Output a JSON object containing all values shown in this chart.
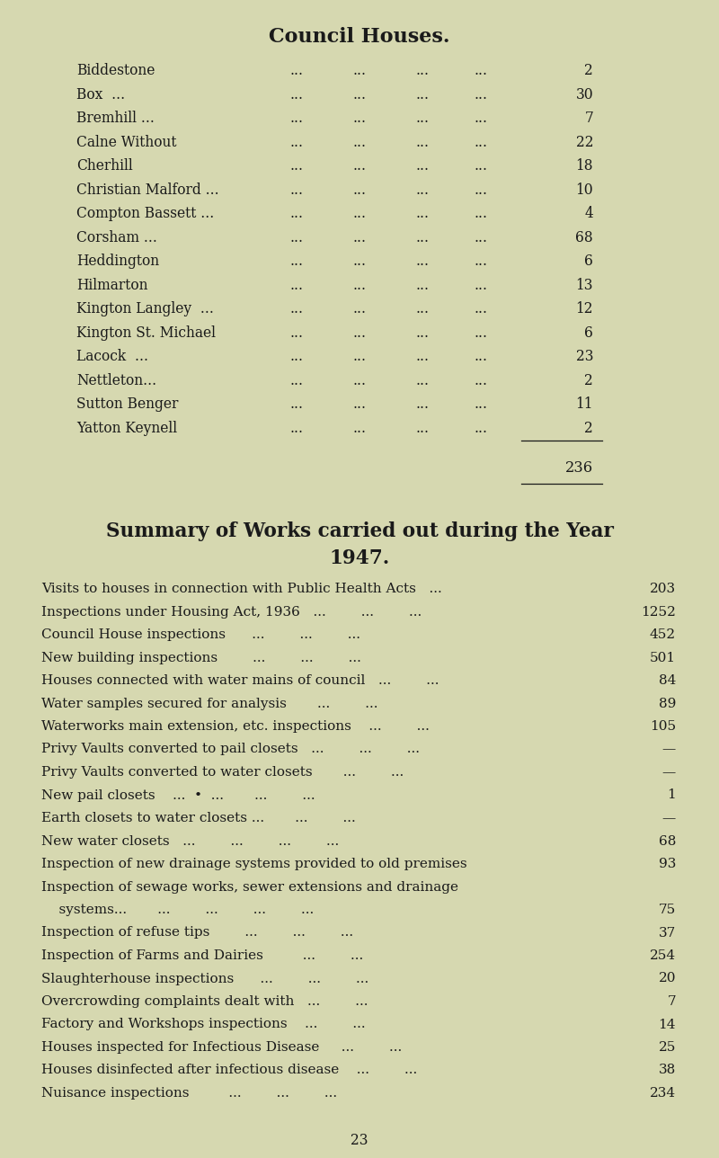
{
  "title": "Council Houses.",
  "bg_color": "#d6d8b0",
  "text_color": "#1a1a1a",
  "council_houses": [
    [
      "Biddestone",
      "2"
    ],
    [
      "Box  ...",
      "30"
    ],
    [
      "Bremhill ...",
      "7"
    ],
    [
      "Calne Without",
      "22"
    ],
    [
      "Cherhill",
      "18"
    ],
    [
      "Christian Malford ...",
      "10"
    ],
    [
      "Compton Bassett ...",
      "4"
    ],
    [
      "Corsham ...",
      "68"
    ],
    [
      "Heddington",
      "6"
    ],
    [
      "Hilmarton",
      "13"
    ],
    [
      "Kington Langley  ...",
      "12"
    ],
    [
      "Kington St. Michael",
      "6"
    ],
    [
      "Lacock  ...",
      "23"
    ],
    [
      "Nettleton...",
      "2"
    ],
    [
      "Sutton Benger",
      "11"
    ],
    [
      "Yatton Keynell",
      "2"
    ]
  ],
  "total": "236",
  "summary_title_line1": "Summary of Works carried out during the Year",
  "summary_title_line2": "1947.",
  "summary_items": [
    [
      "Visits to houses in connection with Public Health Acts   ...",
      "203"
    ],
    [
      "Inspections under Housing Act, 1936   ...        ...        ...",
      "1252"
    ],
    [
      "Council House inspections      ...        ...        ...",
      "452"
    ],
    [
      "New building inspections        ...        ...        ...",
      "501"
    ],
    [
      "Houses connected with water mains of council   ...        ...",
      "84"
    ],
    [
      "Water samples secured for analysis       ...        ...",
      "89"
    ],
    [
      "Waterworks main extension, etc. inspections    ...        ...",
      "105"
    ],
    [
      "Privy Vaults converted to pail closets   ...        ...        ...",
      "—"
    ],
    [
      "Privy Vaults converted to water closets       ...        ...",
      "—"
    ],
    [
      "New pail closets    ...  •  ...       ...        ...",
      "1"
    ],
    [
      "Earth closets to water closets ...       ...        ...",
      "—"
    ],
    [
      "New water closets   ...        ...        ...        ...",
      "68"
    ],
    [
      "Inspection of new drainage systems provided to old premises",
      "93"
    ],
    [
      "Inspection of sewage works, sewer extensions and drainage",
      ""
    ],
    [
      "    systems...       ...        ...        ...        ...",
      "75"
    ],
    [
      "Inspection of refuse tips        ...        ...        ...",
      "37"
    ],
    [
      "Inspection of Farms and Dairies         ...        ...",
      "254"
    ],
    [
      "Slaughterhouse inspections      ...        ...        ...",
      "20"
    ],
    [
      "Overcrowding complaints dealt with   ...        ...",
      "7"
    ],
    [
      "Factory and Workshops inspections    ...        ...",
      "14"
    ],
    [
      "Houses inspected for Infectious Disease     ...        ...",
      "25"
    ],
    [
      "Houses disinfected after infectious disease    ...        ...",
      "38"
    ],
    [
      "Nuisance inspections         ...        ...        ...",
      "234"
    ]
  ],
  "page_number": "23",
  "title_fontsize": 16,
  "body_fontsize": 11.2,
  "summary_title_fontsize": 15.5
}
